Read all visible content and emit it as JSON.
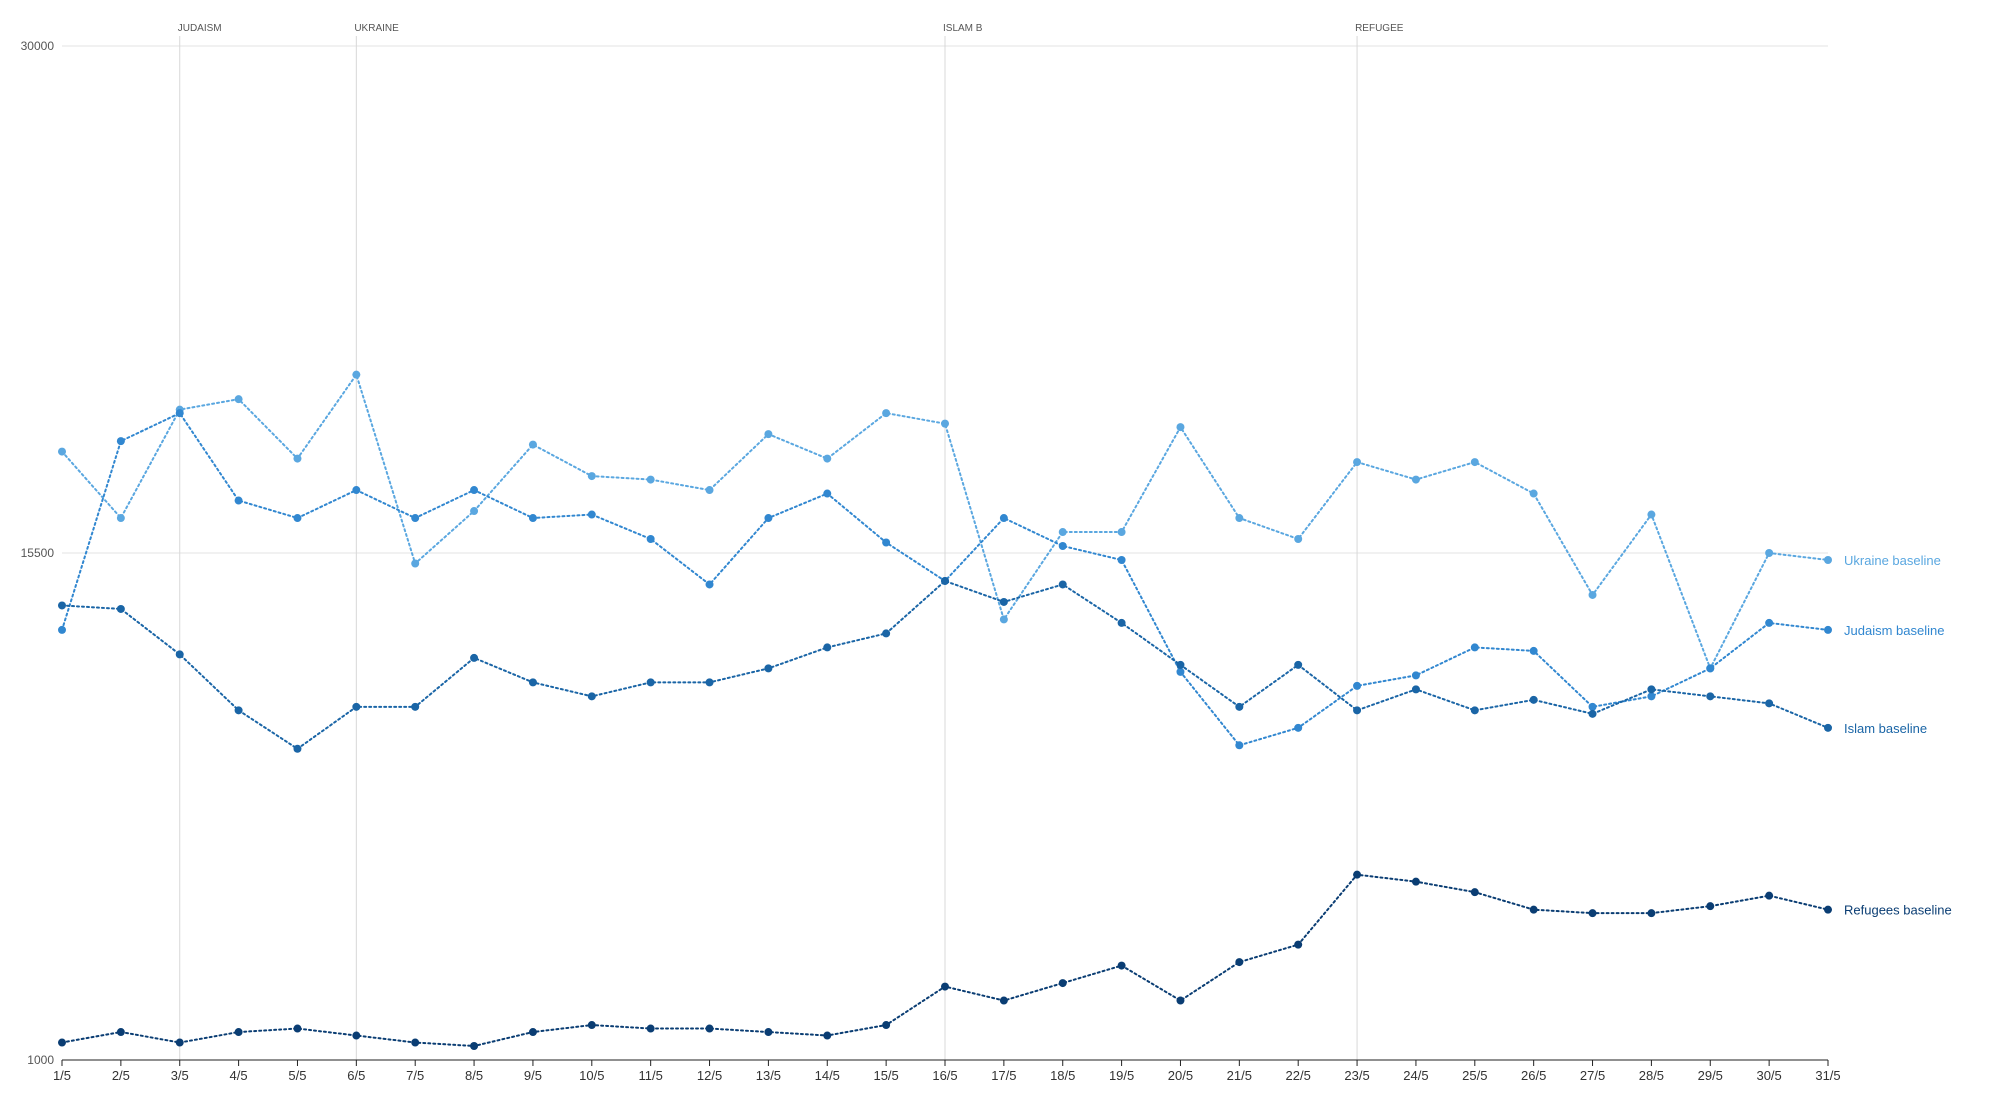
{
  "chart_data": {
    "type": "line",
    "title": "",
    "xlabel": "",
    "ylabel": "",
    "ylim": [
      1000,
      30000
    ],
    "yticks": [
      "1000",
      "15500",
      "30000"
    ],
    "grid": "horizontal at y ticks; vertical event lines",
    "categories": [
      "1/5",
      "2/5",
      "3/5",
      "4/5",
      "5/5",
      "6/5",
      "7/5",
      "8/5",
      "9/5",
      "10/5",
      "11/5",
      "12/5",
      "13/5",
      "14/5",
      "15/5",
      "16/5",
      "17/5",
      "18/5",
      "19/5",
      "20/5",
      "21/5",
      "22/5",
      "23/5",
      "24/5",
      "25/5",
      "26/5",
      "27/5",
      "28/5",
      "29/5",
      "30/5",
      "31/5"
    ],
    "events": [
      {
        "label": "JUDAISM",
        "category": "3/5"
      },
      {
        "label": "UKRAINE",
        "category": "6/5"
      },
      {
        "label": "ISLAM B",
        "category": "16/5"
      },
      {
        "label": "REFUGEE",
        "category": "23/5"
      }
    ],
    "series": [
      {
        "name": "Ukraine baseline",
        "color": "#5aa7e0",
        "values": [
          18400,
          16500,
          19600,
          19900,
          18200,
          20600,
          15200,
          16700,
          18600,
          17700,
          17600,
          17300,
          18900,
          18200,
          19500,
          19200,
          13600,
          16100,
          16100,
          19100,
          16500,
          15900,
          18100,
          17600,
          18100,
          17200,
          14300,
          16600,
          12200,
          15500,
          15300
        ]
      },
      {
        "name": "Judaism baseline",
        "color": "#3187d0",
        "values": [
          13300,
          18700,
          19500,
          17000,
          16500,
          17300,
          16500,
          17300,
          16500,
          16600,
          15900,
          14600,
          16500,
          17200,
          15800,
          14700,
          16500,
          15700,
          15300,
          12100,
          10000,
          10500,
          11700,
          12000,
          12800,
          12700,
          11100,
          11400,
          12200,
          13500,
          13300
        ]
      },
      {
        "name": "Islam baseline",
        "color": "#1a65a6",
        "values": [
          14000,
          13900,
          12600,
          11000,
          9900,
          11100,
          11100,
          12500,
          11800,
          11400,
          11800,
          11800,
          12200,
          12800,
          13200,
          14700,
          14100,
          14600,
          13500,
          12300,
          11100,
          12300,
          11000,
          11600,
          11000,
          11300,
          10900,
          11600,
          11400,
          11200,
          10500
        ]
      },
      {
        "name": "Refugees baseline",
        "color": "#0a3d73",
        "values": [
          1500,
          1800,
          1500,
          1800,
          1900,
          1700,
          1500,
          1400,
          1800,
          2000,
          1900,
          1900,
          1800,
          1700,
          2000,
          3100,
          2700,
          3200,
          3700,
          2700,
          3800,
          4300,
          6300,
          6100,
          5800,
          5300,
          5200,
          5200,
          5400,
          5700,
          5300
        ]
      }
    ]
  }
}
